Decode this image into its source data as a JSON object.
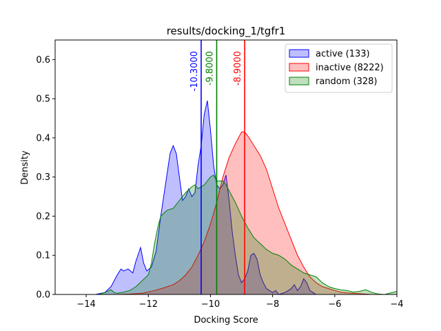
{
  "chart_data": {
    "type": "area",
    "title": "results/docking_1/tgfr1",
    "xlabel": "Docking Score",
    "ylabel": "Density",
    "xlim": [
      -15,
      -4
    ],
    "ylim": [
      0,
      0.65
    ],
    "xticks": [
      -14,
      -12,
      -10,
      -8,
      -6,
      -4
    ],
    "xtick_labels": [
      "−14",
      "−12",
      "−10",
      "−8",
      "−6",
      "−4"
    ],
    "yticks": [
      0.0,
      0.1,
      0.2,
      0.3,
      0.4,
      0.5,
      0.6
    ],
    "ytick_labels": [
      "0.0",
      "0.1",
      "0.2",
      "0.3",
      "0.4",
      "0.5",
      "0.6"
    ],
    "grid": false,
    "legend_position": "top-right",
    "series": [
      {
        "name": "active (133)",
        "color": "#0000ff",
        "fill": "#0000ff",
        "fill_opacity": 0.25,
        "x": [
          -13.7,
          -13.4,
          -13.2,
          -13.0,
          -12.88,
          -12.8,
          -12.65,
          -12.5,
          -12.4,
          -12.25,
          -12.15,
          -12.05,
          -11.9,
          -11.75,
          -11.6,
          -11.45,
          -11.3,
          -11.2,
          -11.1,
          -11.0,
          -10.9,
          -10.8,
          -10.7,
          -10.6,
          -10.5,
          -10.4,
          -10.3,
          -10.2,
          -10.1,
          -10.0,
          -9.9,
          -9.8,
          -9.7,
          -9.6,
          -9.5,
          -9.4,
          -9.3,
          -9.2,
          -9.1,
          -9.0,
          -8.9,
          -8.8,
          -8.7,
          -8.6,
          -8.5,
          -8.4,
          -8.3,
          -8.2,
          -8.1,
          -8.0,
          -7.9,
          -7.8,
          -7.6,
          -7.4,
          -7.3,
          -7.2,
          -7.1,
          -7.0,
          -6.9,
          -6.8,
          -6.7,
          -6.6
        ],
        "y": [
          0.0,
          0.005,
          0.02,
          0.05,
          0.065,
          0.06,
          0.065,
          0.055,
          0.085,
          0.12,
          0.08,
          0.06,
          0.07,
          0.11,
          0.2,
          0.28,
          0.36,
          0.38,
          0.36,
          0.3,
          0.24,
          0.25,
          0.27,
          0.25,
          0.26,
          0.33,
          0.38,
          0.46,
          0.495,
          0.42,
          0.33,
          0.28,
          0.27,
          0.28,
          0.305,
          0.24,
          0.16,
          0.1,
          0.05,
          0.03,
          0.04,
          0.06,
          0.1,
          0.105,
          0.09,
          0.05,
          0.03,
          0.015,
          0.01,
          0.005,
          0.01,
          0.0,
          0.005,
          0.015,
          0.025,
          0.01,
          0.02,
          0.04,
          0.03,
          0.01,
          0.005,
          0.0
        ],
        "vline": -10.3,
        "vline_label": "-10.3000"
      },
      {
        "name": "inactive (8222)",
        "color": "#ff0000",
        "fill": "#ff0000",
        "fill_opacity": 0.25,
        "x": [
          -13.0,
          -12.6,
          -12.2,
          -11.8,
          -11.5,
          -11.2,
          -11.0,
          -10.8,
          -10.6,
          -10.4,
          -10.2,
          -10.0,
          -9.8,
          -9.6,
          -9.4,
          -9.2,
          -9.0,
          -8.9,
          -8.8,
          -8.6,
          -8.4,
          -8.2,
          -8.0,
          -7.8,
          -7.6,
          -7.4,
          -7.2,
          -7.0,
          -6.8,
          -6.6,
          -6.4,
          -6.2,
          -6.0,
          -5.8,
          -5.6,
          -5.4,
          -5.2,
          -5.0,
          -4.8
        ],
        "y": [
          0.0,
          0.001,
          0.003,
          0.01,
          0.017,
          0.025,
          0.035,
          0.05,
          0.07,
          0.1,
          0.135,
          0.18,
          0.235,
          0.3,
          0.35,
          0.385,
          0.415,
          0.415,
          0.405,
          0.38,
          0.355,
          0.32,
          0.27,
          0.22,
          0.18,
          0.14,
          0.1,
          0.07,
          0.045,
          0.03,
          0.02,
          0.015,
          0.01,
          0.006,
          0.004,
          0.003,
          0.002,
          0.001,
          0.0
        ],
        "vline": -8.9,
        "vline_label": "-8.9000"
      },
      {
        "name": "random (328)",
        "color": "#008000",
        "fill": "#008000",
        "fill_opacity": 0.25,
        "x": [
          -13.6,
          -13.4,
          -13.2,
          -13.1,
          -13.0,
          -12.8,
          -12.6,
          -12.4,
          -12.2,
          -12.0,
          -11.9,
          -11.8,
          -11.7,
          -11.6,
          -11.4,
          -11.2,
          -11.0,
          -10.8,
          -10.6,
          -10.5,
          -10.4,
          -10.2,
          -10.0,
          -9.9,
          -9.8,
          -9.6,
          -9.5,
          -9.4,
          -9.2,
          -9.0,
          -8.8,
          -8.6,
          -8.4,
          -8.2,
          -8.0,
          -7.8,
          -7.6,
          -7.4,
          -7.2,
          -7.0,
          -6.8,
          -6.6,
          -6.4,
          -6.2,
          -6.0,
          -5.8,
          -5.6,
          -5.4,
          -5.2,
          -5.0,
          -4.8,
          -4.6,
          -4.4,
          -4.2,
          -4.0
        ],
        "y": [
          0.0,
          0.005,
          0.012,
          0.005,
          0.003,
          0.006,
          0.01,
          0.02,
          0.035,
          0.05,
          0.08,
          0.13,
          0.17,
          0.2,
          0.215,
          0.22,
          0.24,
          0.26,
          0.275,
          0.28,
          0.27,
          0.28,
          0.3,
          0.305,
          0.29,
          0.29,
          0.28,
          0.265,
          0.235,
          0.2,
          0.17,
          0.145,
          0.13,
          0.115,
          0.105,
          0.1,
          0.09,
          0.075,
          0.065,
          0.055,
          0.05,
          0.045,
          0.03,
          0.02,
          0.015,
          0.012,
          0.01,
          0.006,
          0.008,
          0.012,
          0.005,
          0.001,
          0.0,
          0.004,
          0.008
        ],
        "vline": -9.8,
        "vline_label": "-9.8000"
      }
    ]
  }
}
